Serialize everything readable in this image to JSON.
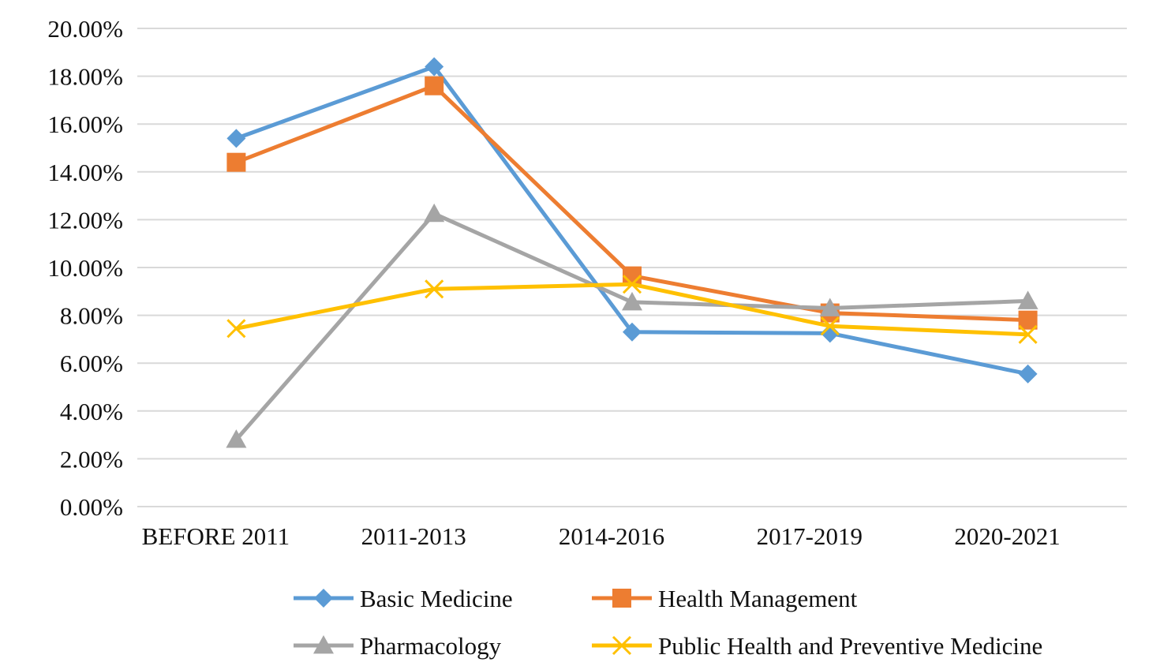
{
  "chart_data": {
    "type": "line",
    "title": "",
    "xlabel": "",
    "ylabel": "",
    "categories": [
      "BEFORE 2011",
      "2011-2013",
      "2014-2016",
      "2017-2019",
      "2020-2021"
    ],
    "ylim": [
      0,
      0.2
    ],
    "yticks": [
      "0.00%",
      "2.00%",
      "4.00%",
      "6.00%",
      "8.00%",
      "10.00%",
      "12.00%",
      "14.00%",
      "16.00%",
      "18.00%",
      "20.00%"
    ],
    "grid": true,
    "legend_position": "bottom",
    "series": [
      {
        "name": "Basic Medicine",
        "color": "#5B9BD5",
        "marker": "diamond",
        "values": [
          0.154,
          0.184,
          0.073,
          0.0725,
          0.0555
        ]
      },
      {
        "name": "Health Management",
        "color": "#ED7D31",
        "marker": "square",
        "values": [
          0.144,
          0.176,
          0.0965,
          0.081,
          0.078
        ]
      },
      {
        "name": "Pharmacology",
        "color": "#A5A5A5",
        "marker": "triangle",
        "values": [
          0.028,
          0.1225,
          0.0855,
          0.083,
          0.086
        ]
      },
      {
        "name": "Public Health and Preventive Medicine",
        "color": "#FFC000",
        "marker": "x",
        "values": [
          0.0745,
          0.091,
          0.093,
          0.0755,
          0.072
        ]
      }
    ]
  }
}
